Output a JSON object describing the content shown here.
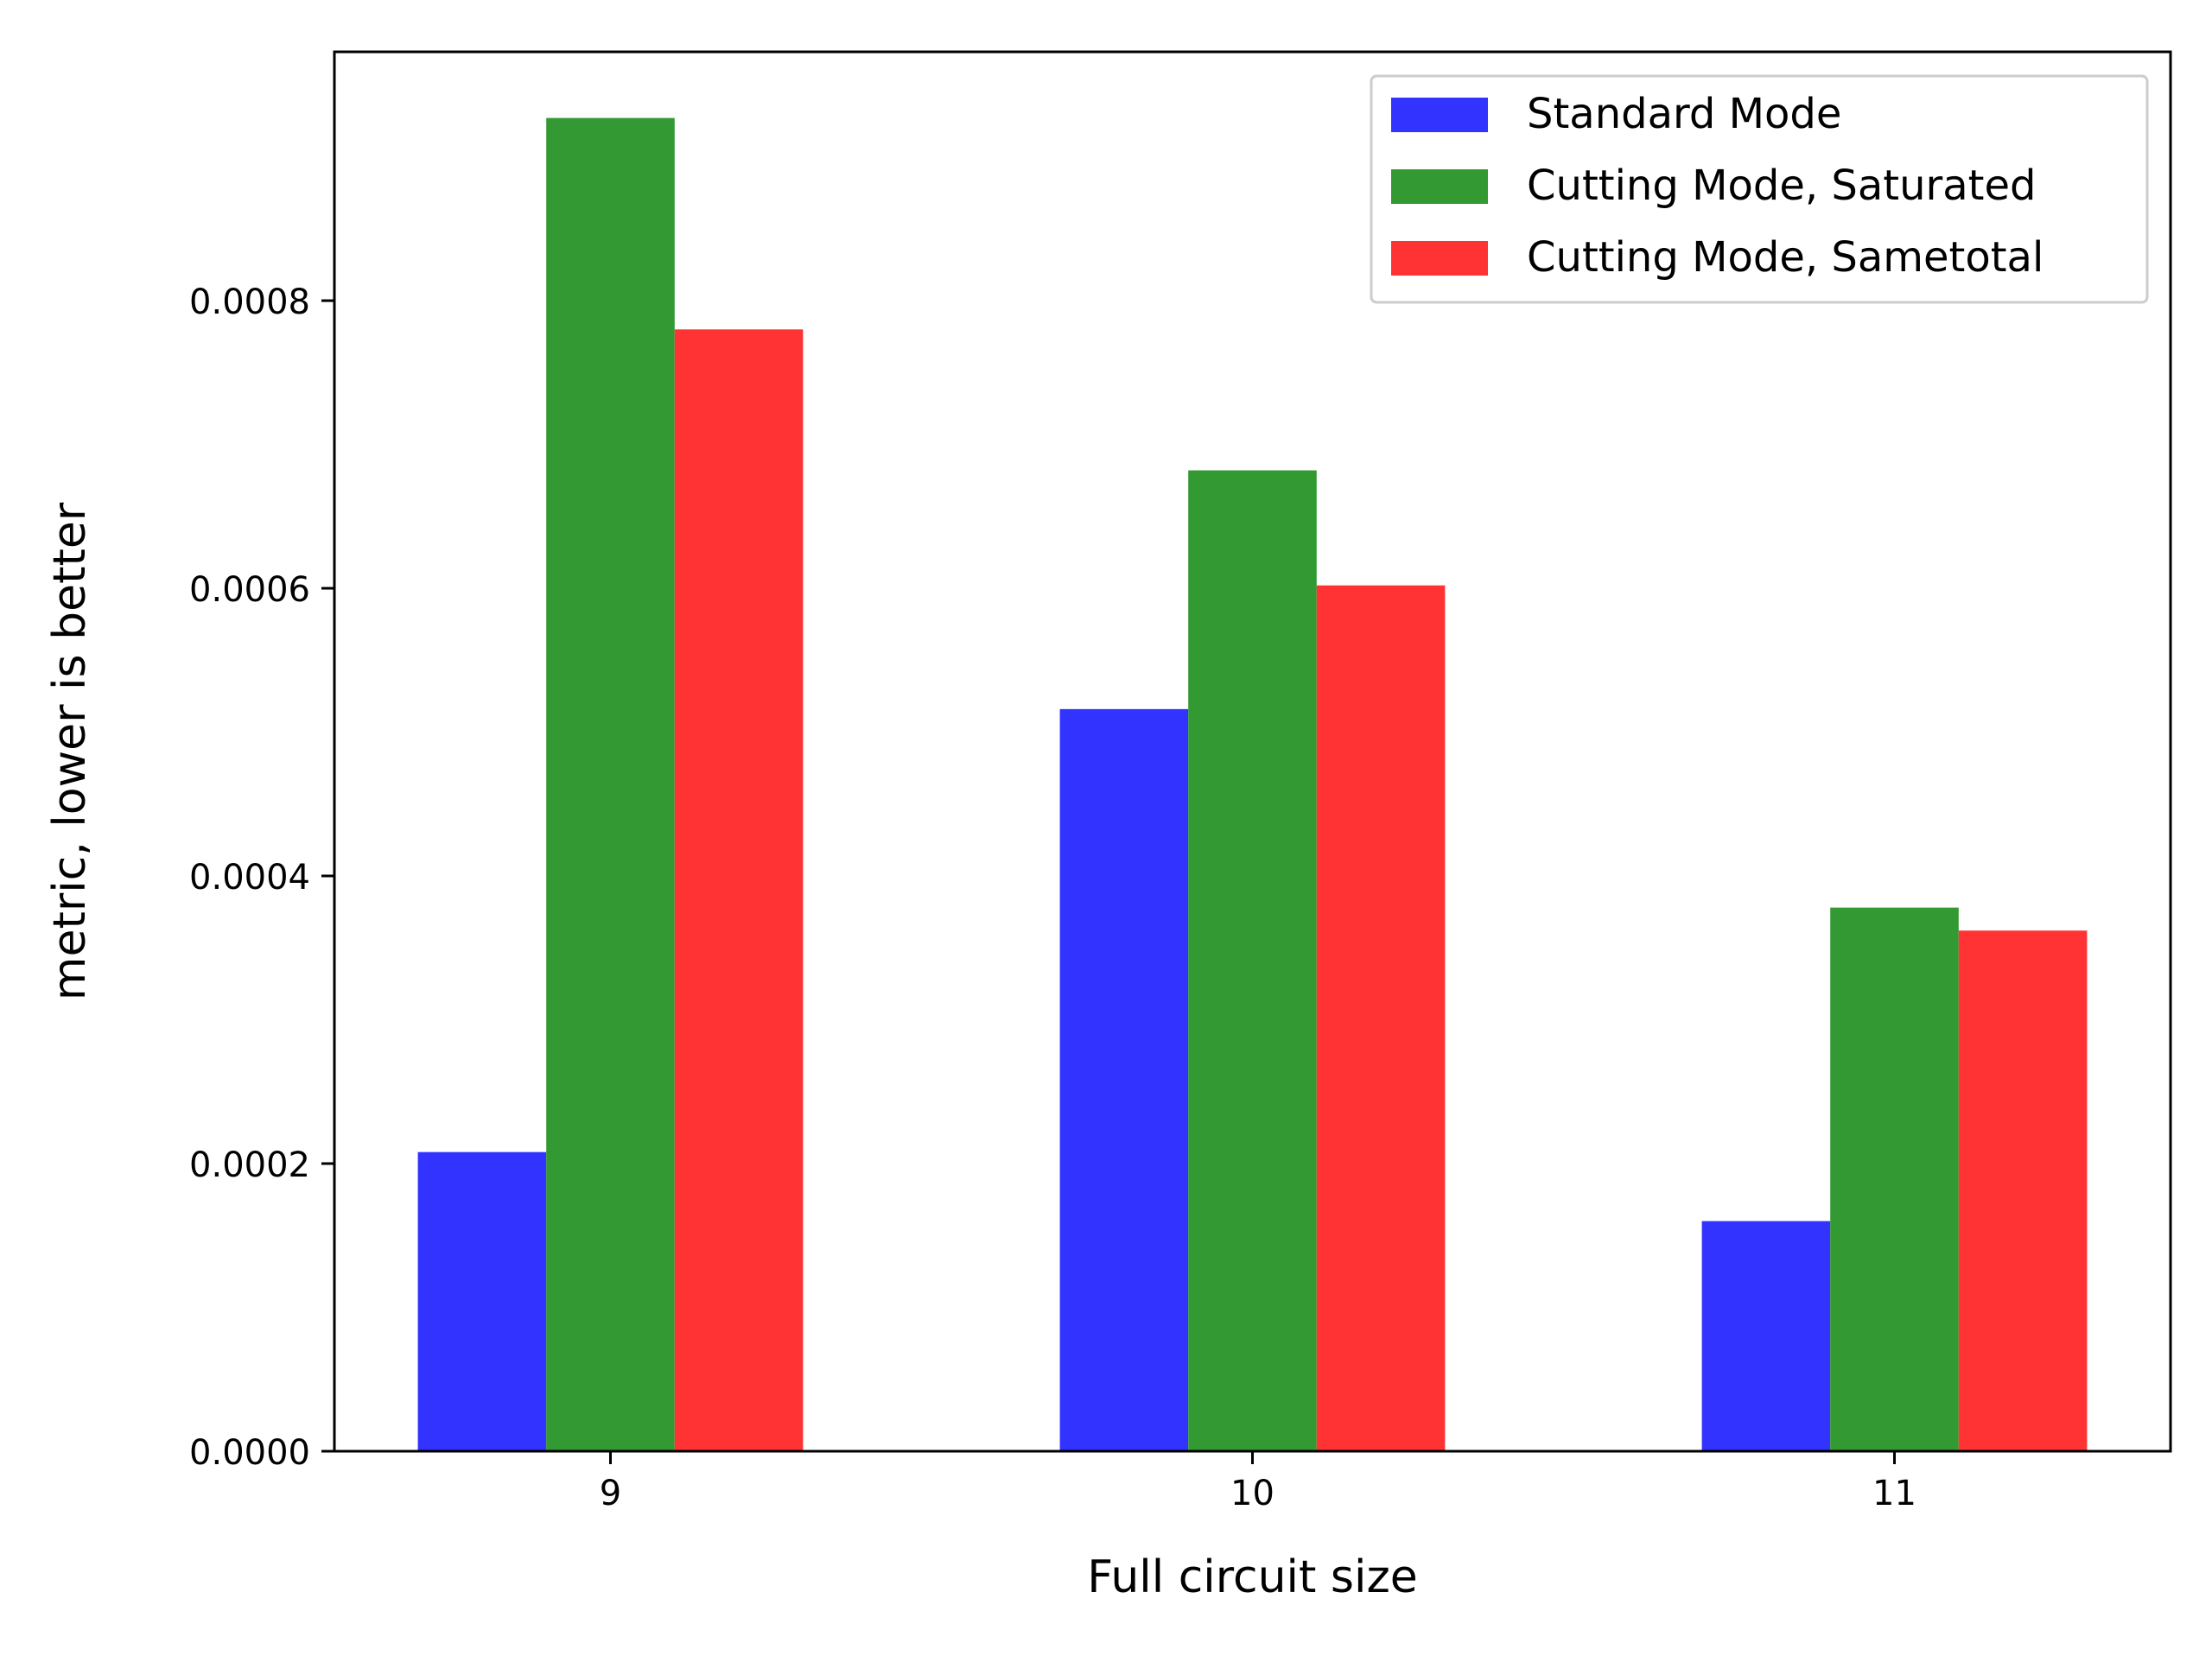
{
  "chart_data": {
    "type": "bar",
    "title": "",
    "xlabel": "Full circuit size",
    "ylabel": "metric, lower is better",
    "categories": [
      "9",
      "10",
      "11"
    ],
    "series": [
      {
        "name": "Standard Mode",
        "color": "#3333ff",
        "values": [
          0.000208,
          0.000516,
          0.00016
        ]
      },
      {
        "name": "Cutting Mode, Saturated",
        "color": "#339933",
        "values": [
          0.000927,
          0.000682,
          0.000378
        ]
      },
      {
        "name": "Cutting Mode, Sametotal",
        "color": "#ff3333",
        "values": [
          0.00078,
          0.000602,
          0.000362
        ]
      }
    ],
    "ylim": [
      0,
      0.000973
    ],
    "yticks": [
      "0.0000",
      "0.0002",
      "0.0004",
      "0.0006",
      "0.0008"
    ],
    "ytick_values": [
      0,
      0.0002,
      0.0004,
      0.0006,
      0.0008
    ],
    "grid": false,
    "legend_position": "top-right"
  }
}
